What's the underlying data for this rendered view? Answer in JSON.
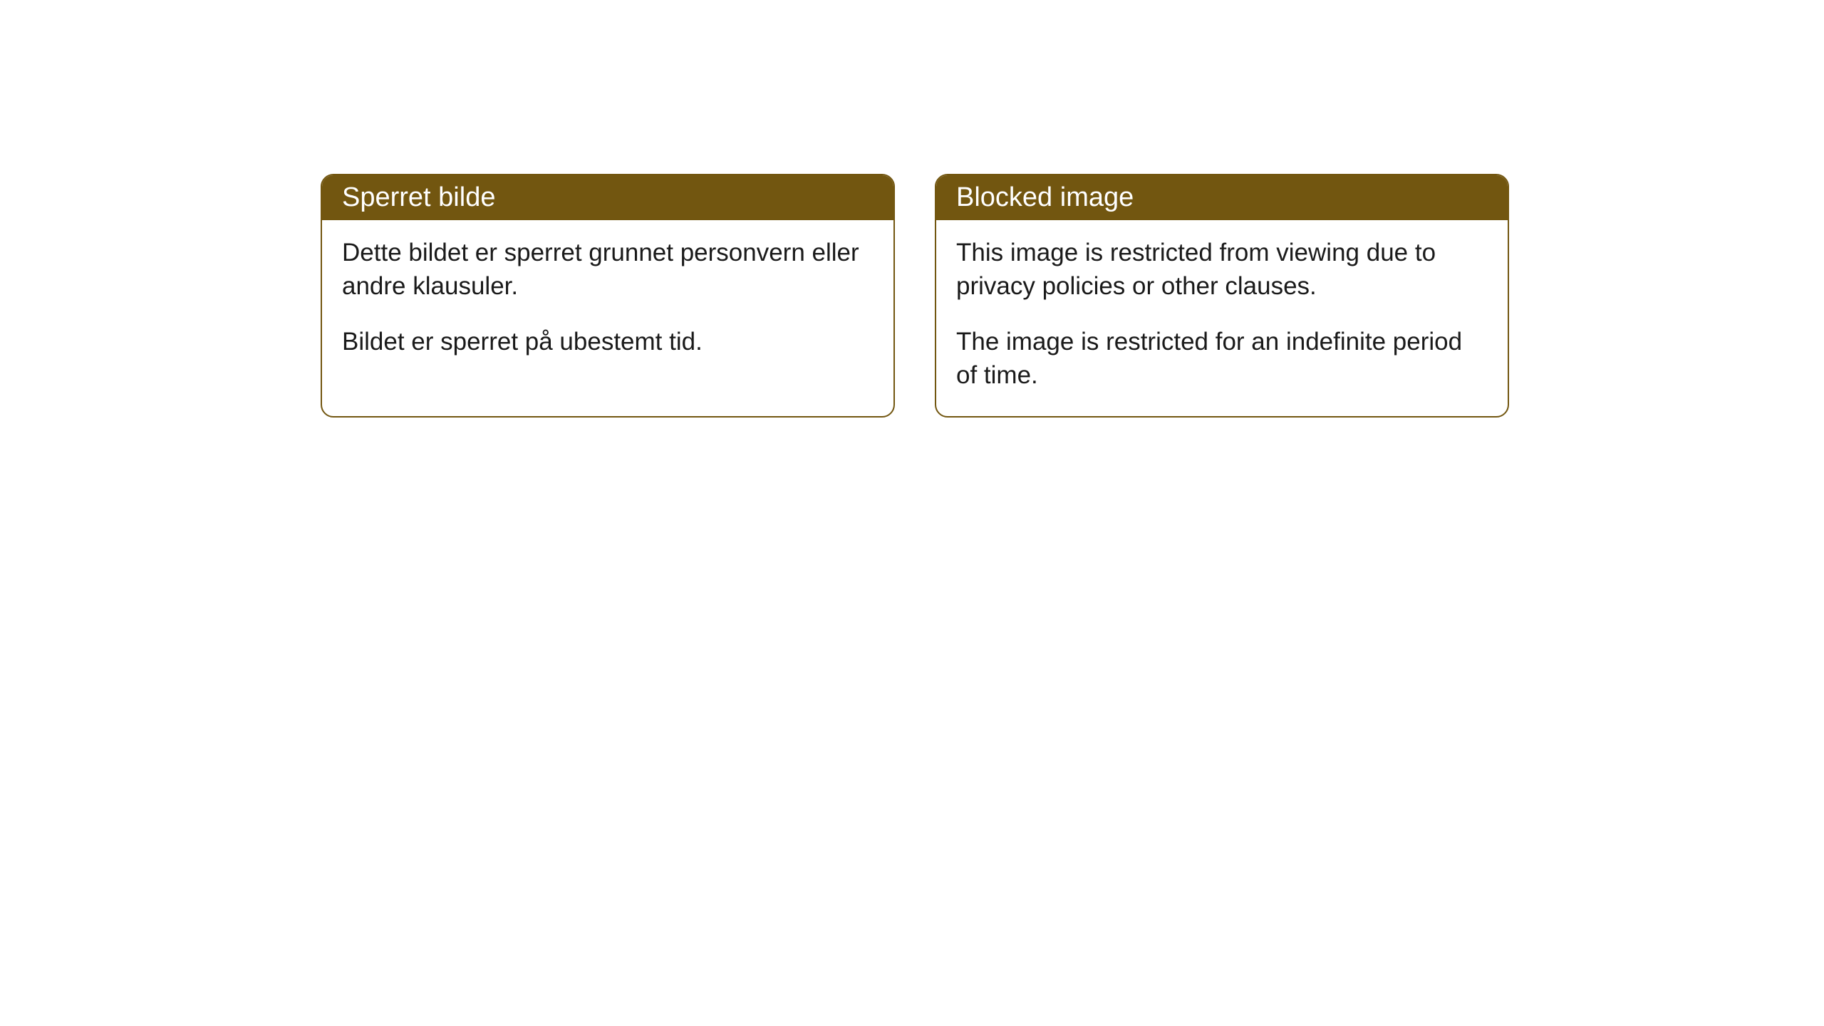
{
  "cards": [
    {
      "title": "Sperret bilde",
      "paragraph1": "Dette bildet er sperret grunnet personvern eller andre klausuler.",
      "paragraph2": "Bildet er sperret på ubestemt tid."
    },
    {
      "title": "Blocked image",
      "paragraph1": "This image is restricted from viewing due to privacy policies or other clauses.",
      "paragraph2": "The image is restricted for an indefinite period of time."
    }
  ],
  "style": {
    "header_background": "#725610",
    "header_text_color": "#ffffff",
    "border_color": "#725610",
    "body_background": "#ffffff",
    "body_text_color": "#1a1a1a",
    "border_radius": 18,
    "header_fontsize": 38,
    "body_fontsize": 35
  }
}
